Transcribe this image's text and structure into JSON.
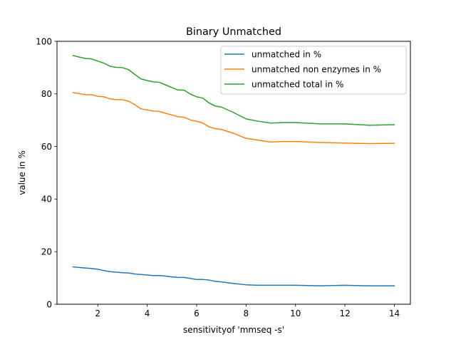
{
  "chart_data": {
    "type": "line",
    "title": "Binary Unmatched",
    "xlabel": "sensitivityof 'mmseq -s'",
    "ylabel": "value in %",
    "xlim": [
      0.35,
      14.65
    ],
    "ylim": [
      0,
      100
    ],
    "xticks": [
      2,
      4,
      6,
      8,
      10,
      12,
      14
    ],
    "yticks": [
      0,
      20,
      40,
      60,
      80,
      100
    ],
    "grid": false,
    "legend_position": "top-right",
    "x": [
      1,
      1.25,
      1.5,
      1.75,
      2,
      2.25,
      2.5,
      2.75,
      3,
      3.25,
      3.5,
      3.75,
      4,
      4.25,
      4.5,
      4.75,
      5,
      5.25,
      5.5,
      5.75,
      6,
      6.25,
      6.5,
      6.75,
      7,
      7.5,
      8,
      8.5,
      9,
      9.5,
      10,
      11,
      12,
      13,
      14
    ],
    "series": [
      {
        "name": "unmatched in %",
        "color": "#1f77b4",
        "values": [
          14.2,
          14.0,
          13.8,
          13.6,
          13.3,
          12.8,
          12.4,
          12.2,
          12.0,
          11.9,
          11.5,
          11.3,
          11.1,
          10.9,
          10.9,
          10.7,
          10.4,
          10.2,
          10.2,
          9.8,
          9.4,
          9.4,
          9.2,
          8.7,
          8.5,
          7.9,
          7.4,
          7.2,
          7.2,
          7.2,
          7.2,
          7.0,
          7.2,
          7.0,
          7.0
        ]
      },
      {
        "name": "unmatched non enzymes in %",
        "color": "#ff7f0e",
        "values": [
          80.5,
          80.1,
          79.7,
          79.7,
          79.1,
          78.9,
          78.1,
          77.8,
          77.8,
          77.2,
          75.9,
          74.3,
          73.9,
          73.5,
          73.3,
          72.6,
          72.0,
          71.3,
          71.1,
          70.1,
          69.6,
          68.9,
          67.5,
          66.8,
          66.5,
          65.0,
          63.1,
          62.4,
          61.7,
          61.9,
          61.9,
          61.5,
          61.3,
          61.1,
          61.2
        ]
      },
      {
        "name": "unmatched total in %",
        "color": "#2ca02c",
        "values": [
          94.6,
          94.0,
          93.5,
          93.3,
          92.5,
          91.7,
          90.5,
          90.1,
          90.0,
          89.2,
          87.4,
          85.7,
          85.1,
          84.6,
          84.4,
          83.4,
          82.4,
          81.5,
          81.4,
          79.9,
          78.9,
          78.4,
          76.6,
          75.4,
          75.0,
          72.9,
          70.5,
          69.6,
          68.9,
          69.1,
          69.1,
          68.6,
          68.6,
          68.1,
          68.3
        ]
      }
    ]
  }
}
